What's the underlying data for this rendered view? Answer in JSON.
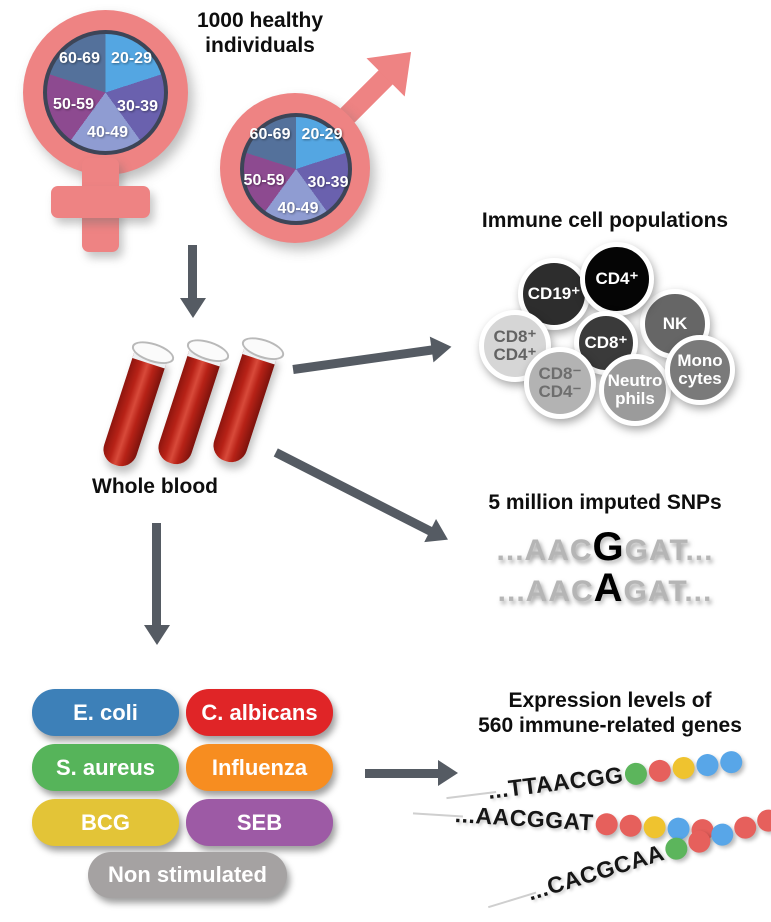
{
  "title": {
    "line1": "1000 healthy",
    "line2": "individuals"
  },
  "colors": {
    "symbol_pink": "#ee8383",
    "arrow_gray": "#555b63",
    "blood_red": "#b72217",
    "ring_border": "#3d4557"
  },
  "demographics": {
    "age_segments": [
      {
        "label": "20-29",
        "color": "#54a6e2"
      },
      {
        "label": "30-39",
        "color": "#6a61ae"
      },
      {
        "label": "40-49",
        "color": "#8f9cd2"
      },
      {
        "label": "50-59",
        "color": "#8d4a90"
      },
      {
        "label": "60-69",
        "color": "#54719b"
      }
    ]
  },
  "whole_blood": {
    "label": "Whole blood"
  },
  "immune_cells": {
    "title": "Immune cell populations",
    "cells": [
      {
        "line1": "NK",
        "line2": "",
        "bg": "#666666",
        "fg": "#ffffff"
      },
      {
        "line1": "CD19⁺",
        "line2": "",
        "bg": "#2d2d2d",
        "fg": "#ffffff"
      },
      {
        "line1": "CD4⁺",
        "line2": "",
        "bg": "#050505",
        "fg": "#ffffff"
      },
      {
        "line1": "CD8⁺",
        "line2": "CD4⁺",
        "bg": "#d6d6d6",
        "fg": "#636363"
      },
      {
        "line1": "CD8⁺",
        "line2": "",
        "bg": "#3a3a3a",
        "fg": "#ffffff"
      },
      {
        "line1": "CD8⁻",
        "line2": "CD4⁻",
        "bg": "#b3b3b3",
        "fg": "#6e6e6e"
      },
      {
        "line1": "Neutro",
        "line2": "phils",
        "bg": "#9b9b9b",
        "fg": "#ffffff"
      },
      {
        "line1": "Mono",
        "line2": "cytes",
        "bg": "#7a7a7a",
        "fg": "#ffffff"
      }
    ]
  },
  "snps": {
    "title": "5 million imputed SNPs",
    "sequences": [
      {
        "prefix": "...AAC",
        "variant": "G",
        "suffix": "GAT..."
      },
      {
        "prefix": "...AAC",
        "variant": "A",
        "suffix": "GAT..."
      }
    ]
  },
  "stimuli": {
    "items": [
      {
        "label": "E. coli",
        "color": "#3d80b8"
      },
      {
        "label": "C. albicans",
        "color": "#e02527"
      },
      {
        "label": "S. aureus",
        "color": "#56b45a"
      },
      {
        "label": "Influenza",
        "color": "#f78d20"
      },
      {
        "label": "BCG",
        "color": "#e3c437"
      },
      {
        "label": "SEB",
        "color": "#9d5aa5"
      },
      {
        "label": "Non stimulated",
        "color": "#a5a2a2"
      }
    ]
  },
  "expression": {
    "title_line1": "Expression levels of",
    "title_line2": "560 immune-related genes",
    "dot_colors": {
      "green": "#5cb55c",
      "red": "#e6605c",
      "yellow": "#efc32f",
      "blue": "#58a6e8"
    },
    "strands": [
      {
        "sequence": "...TTAACGG",
        "dots": [
          "green",
          "red",
          "yellow",
          "blue",
          "blue"
        ]
      },
      {
        "sequence": "...AACGGAT",
        "dots": [
          "red",
          "red",
          "yellow",
          "blue",
          "red"
        ]
      },
      {
        "sequence": "...CACGCAA",
        "dots": [
          "green",
          "red",
          "blue",
          "red",
          "red"
        ]
      }
    ]
  }
}
